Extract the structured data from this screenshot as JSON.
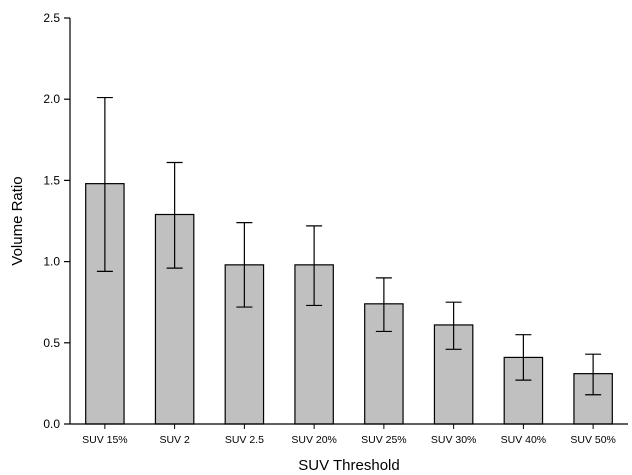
{
  "chart_data": {
    "type": "bar",
    "categories": [
      "SUV 15%",
      "SUV 2",
      "SUV 2.5",
      "SUV 20%",
      "SUV 25%",
      "SUV 30%",
      "SUV 40%",
      "SUV 50%"
    ],
    "values": [
      1.48,
      1.29,
      0.98,
      0.98,
      0.74,
      0.61,
      0.41,
      0.31
    ],
    "error_upper": [
      2.01,
      1.61,
      1.24,
      1.22,
      0.9,
      0.75,
      0.55,
      0.43
    ],
    "error_lower": [
      0.94,
      0.96,
      0.72,
      0.73,
      0.57,
      0.46,
      0.27,
      0.18
    ],
    "xlabel": "SUV Threshold",
    "ylabel": "Volume Ratio",
    "ylim": [
      0,
      2.5
    ],
    "yticks": [
      "0.0",
      "0.5",
      "1.0",
      "1.5",
      "2.0",
      "2.5"
    ],
    "grid": false,
    "bar_color": "#c0c0c0",
    "edge_color": "#000000"
  }
}
